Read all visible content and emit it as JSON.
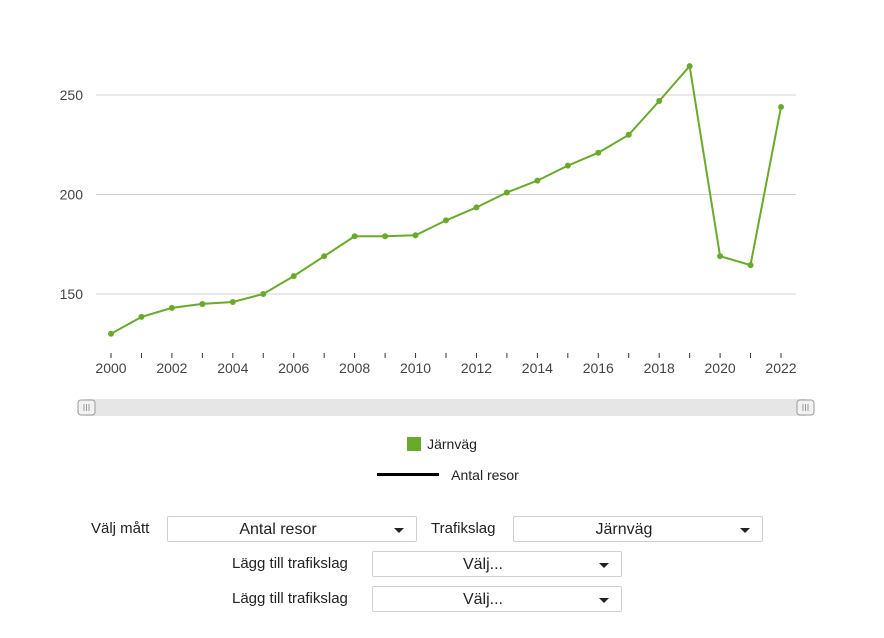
{
  "chart_data": {
    "type": "line",
    "x": [
      2000,
      2001,
      2002,
      2003,
      2004,
      2005,
      2006,
      2007,
      2008,
      2009,
      2010,
      2011,
      2012,
      2013,
      2014,
      2015,
      2016,
      2017,
      2018,
      2019,
      2020,
      2021,
      2022
    ],
    "series": [
      {
        "name": "Järnväg",
        "color": "#6aaa2a",
        "values": [
          130,
          138.5,
          143,
          145,
          146,
          150,
          159,
          169,
          179,
          179,
          179.5,
          187,
          193.5,
          201,
          207,
          214.5,
          221,
          230,
          247,
          264.5,
          169,
          164.5,
          244
        ]
      }
    ],
    "xticks": [
      "2000",
      "2002",
      "2004",
      "2006",
      "2008",
      "2010",
      "2012",
      "2014",
      "2016",
      "2018",
      "2020",
      "2022"
    ],
    "yticks": [
      "150",
      "200",
      "250"
    ],
    "ylim": [
      125,
      275
    ],
    "grid": true,
    "legend": {
      "position": "bottom",
      "series_label": "Järnväg",
      "measure_label": "Antal resor"
    }
  },
  "controls": {
    "measure_label": "Välj mått",
    "measure_value": "Antal resor",
    "mode_label": "Trafikslag",
    "mode_value": "Järnväg",
    "add_mode_label_1": "Lägg till trafikslag",
    "add_mode_value_1": "Välj...",
    "add_mode_label_2": "Lägg till trafikslag",
    "add_mode_value_2": "Välj..."
  }
}
